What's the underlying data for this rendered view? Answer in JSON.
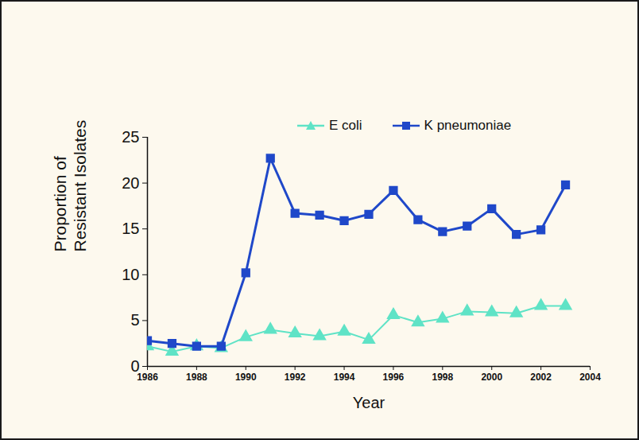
{
  "chart_data": {
    "type": "line",
    "xlabel": "Year",
    "ylabel": [
      "Proportion of",
      "Resistant Isolates"
    ],
    "x": [
      1986,
      1987,
      1988,
      1989,
      1990,
      1991,
      1992,
      1993,
      1994,
      1995,
      1996,
      1997,
      1998,
      1999,
      2000,
      2001,
      2002,
      2003
    ],
    "series": [
      {
        "name": "E coli",
        "color": "#5fe3c6",
        "marker": "triangle",
        "values": [
          2.2,
          1.6,
          2.2,
          2.0,
          3.2,
          4.0,
          3.6,
          3.3,
          3.8,
          2.9,
          5.6,
          4.8,
          5.2,
          6.0,
          5.9,
          5.8,
          6.6,
          6.6
        ]
      },
      {
        "name": "K pneumoniae",
        "color": "#1f48c9",
        "marker": "square",
        "values": [
          2.8,
          2.5,
          2.2,
          2.2,
          10.2,
          22.7,
          16.7,
          16.5,
          15.9,
          16.6,
          19.2,
          16.0,
          14.7,
          15.3,
          17.2,
          14.4,
          14.9,
          19.8
        ]
      }
    ],
    "xlim": [
      1986,
      2004
    ],
    "xticks": [
      1986,
      1988,
      1990,
      1992,
      1994,
      1996,
      1998,
      2000,
      2002,
      2004
    ],
    "ylim": [
      0,
      25
    ],
    "yticks": [
      0,
      5,
      10,
      15,
      20,
      25
    ],
    "grid": false,
    "legend": "top"
  }
}
